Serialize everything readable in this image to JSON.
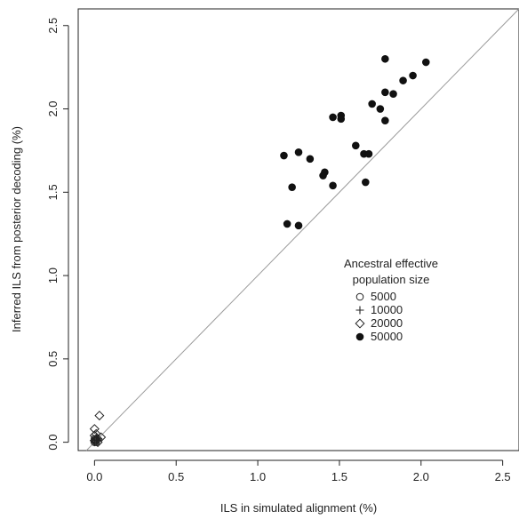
{
  "chart_data": {
    "type": "scatter",
    "title": "",
    "xlabel": "ILS in simulated alignment (%)",
    "ylabel": "Inferred ILS from posterior decoding (%)",
    "xlim": [
      -0.1,
      2.6
    ],
    "ylim": [
      -0.05,
      2.6
    ],
    "x_ticks": [
      "0.0",
      "0.5",
      "1.0",
      "1.5",
      "2.0",
      "2.5"
    ],
    "y_ticks": [
      "0.0",
      "0.5",
      "1.0",
      "1.5",
      "2.0",
      "2.5"
    ],
    "reference_line": "y = x",
    "grid": false,
    "legend": {
      "title_line1": "Ancestral effective",
      "title_line2": "population size",
      "placement": "center-right"
    },
    "series": [
      {
        "name": "5000",
        "marker": "open-circle",
        "points": [
          [
            0.0,
            0.0
          ],
          [
            0.0,
            0.01
          ],
          [
            0.01,
            0.0
          ],
          [
            0.0,
            0.02
          ],
          [
            0.01,
            0.01
          ]
        ]
      },
      {
        "name": "10000",
        "marker": "plus",
        "points": [
          [
            0.0,
            0.0
          ],
          [
            0.01,
            0.02
          ],
          [
            0.02,
            0.01
          ],
          [
            0.01,
            0.03
          ],
          [
            0.02,
            0.02
          ]
        ]
      },
      {
        "name": "20000",
        "marker": "open-diamond",
        "points": [
          [
            0.03,
            0.16
          ],
          [
            0.0,
            0.08
          ],
          [
            0.0,
            0.04
          ],
          [
            0.01,
            0.05
          ],
          [
            0.04,
            0.03
          ],
          [
            0.02,
            0.02
          ],
          [
            0.0,
            0.01
          ],
          [
            0.02,
            0.0
          ],
          [
            0.01,
            0.02
          ]
        ]
      },
      {
        "name": "50000",
        "marker": "filled-circle",
        "points": [
          [
            1.78,
            2.3
          ],
          [
            2.03,
            2.28
          ],
          [
            1.95,
            2.2
          ],
          [
            1.89,
            2.17
          ],
          [
            1.78,
            2.1
          ],
          [
            1.83,
            2.09
          ],
          [
            1.7,
            2.03
          ],
          [
            1.75,
            2.0
          ],
          [
            1.51,
            1.96
          ],
          [
            1.46,
            1.95
          ],
          [
            1.51,
            1.94
          ],
          [
            1.78,
            1.93
          ],
          [
            1.6,
            1.78
          ],
          [
            1.65,
            1.73
          ],
          [
            1.68,
            1.73
          ],
          [
            1.16,
            1.72
          ],
          [
            1.25,
            1.74
          ],
          [
            1.32,
            1.7
          ],
          [
            1.41,
            1.62
          ],
          [
            1.4,
            1.6
          ],
          [
            1.66,
            1.56
          ],
          [
            1.21,
            1.53
          ],
          [
            1.46,
            1.54
          ],
          [
            1.18,
            1.31
          ],
          [
            1.25,
            1.3
          ]
        ]
      }
    ]
  }
}
